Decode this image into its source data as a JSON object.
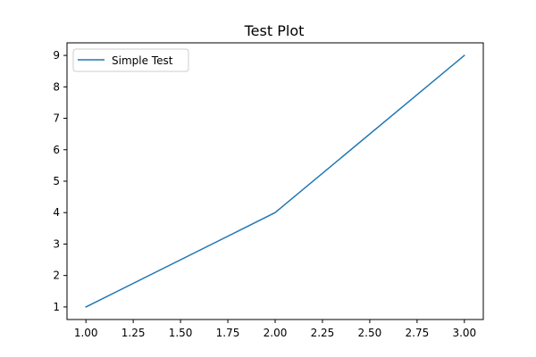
{
  "chart_data": {
    "type": "line",
    "title": "Test Plot",
    "xlabel": "",
    "ylabel": "",
    "x": [
      1.0,
      2.0,
      3.0
    ],
    "series": [
      {
        "name": "Simple Test",
        "values": [
          1,
          4,
          9
        ],
        "color": "#1f77b4"
      }
    ],
    "xlim": [
      0.9,
      3.1
    ],
    "ylim": [
      0.6,
      9.4
    ],
    "x_ticks": [
      "1.00",
      "1.25",
      "1.50",
      "1.75",
      "2.00",
      "2.25",
      "2.50",
      "2.75",
      "3.00"
    ],
    "y_ticks": [
      "1",
      "2",
      "3",
      "4",
      "5",
      "6",
      "7",
      "8",
      "9"
    ],
    "grid": false,
    "legend_position": "upper-left"
  }
}
